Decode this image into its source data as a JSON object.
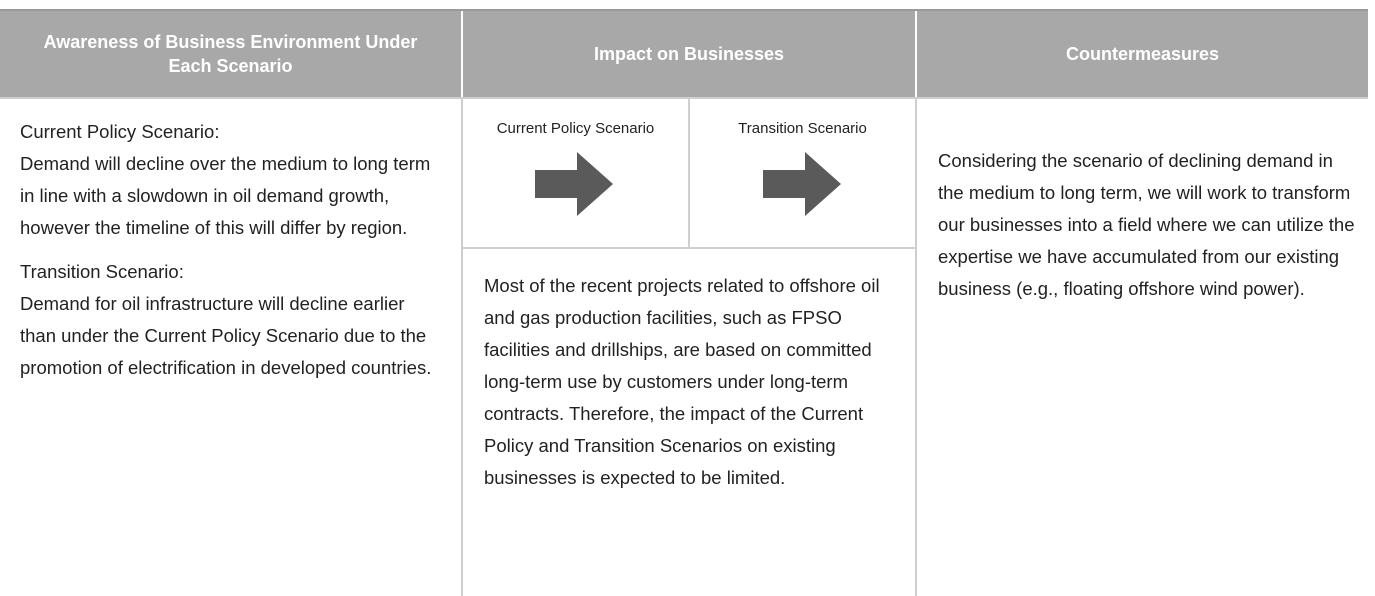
{
  "table": {
    "headers": [
      "Awareness of Business Environment Under Each Scenario",
      "Impact on Businesses",
      "Countermeasures"
    ],
    "awareness": [
      {
        "label": "Current Policy Scenario:",
        "text": "Demand will decline over the medium to long term in line with a slowdown in oil demand growth, however the timeline of this will differ by region."
      },
      {
        "label": "Transition Scenario:",
        "text": "Demand for oil infrastructure will decline earlier than under the Current Policy Scenario due to the promotion of electrification in developed countries."
      }
    ],
    "impact": {
      "sub_headers": [
        "Current Policy Scenario",
        "Transition Scenario"
      ],
      "text": "Most of the recent projects related to offshore oil and gas production facilities, such as FPSO facilities and drillships, are based on committed long-term use by customers under long-term contracts. Therefore, the impact of the Current Policy and Transition Scenarios on existing businesses is expected to be limited."
    },
    "countermeasures": "Considering the scenario of declining demand in the medium to long term, we will work to transform our businesses into a field where we can utilize the expertise we have accumulated from our existing business (e.g., floating offshore wind power)."
  }
}
